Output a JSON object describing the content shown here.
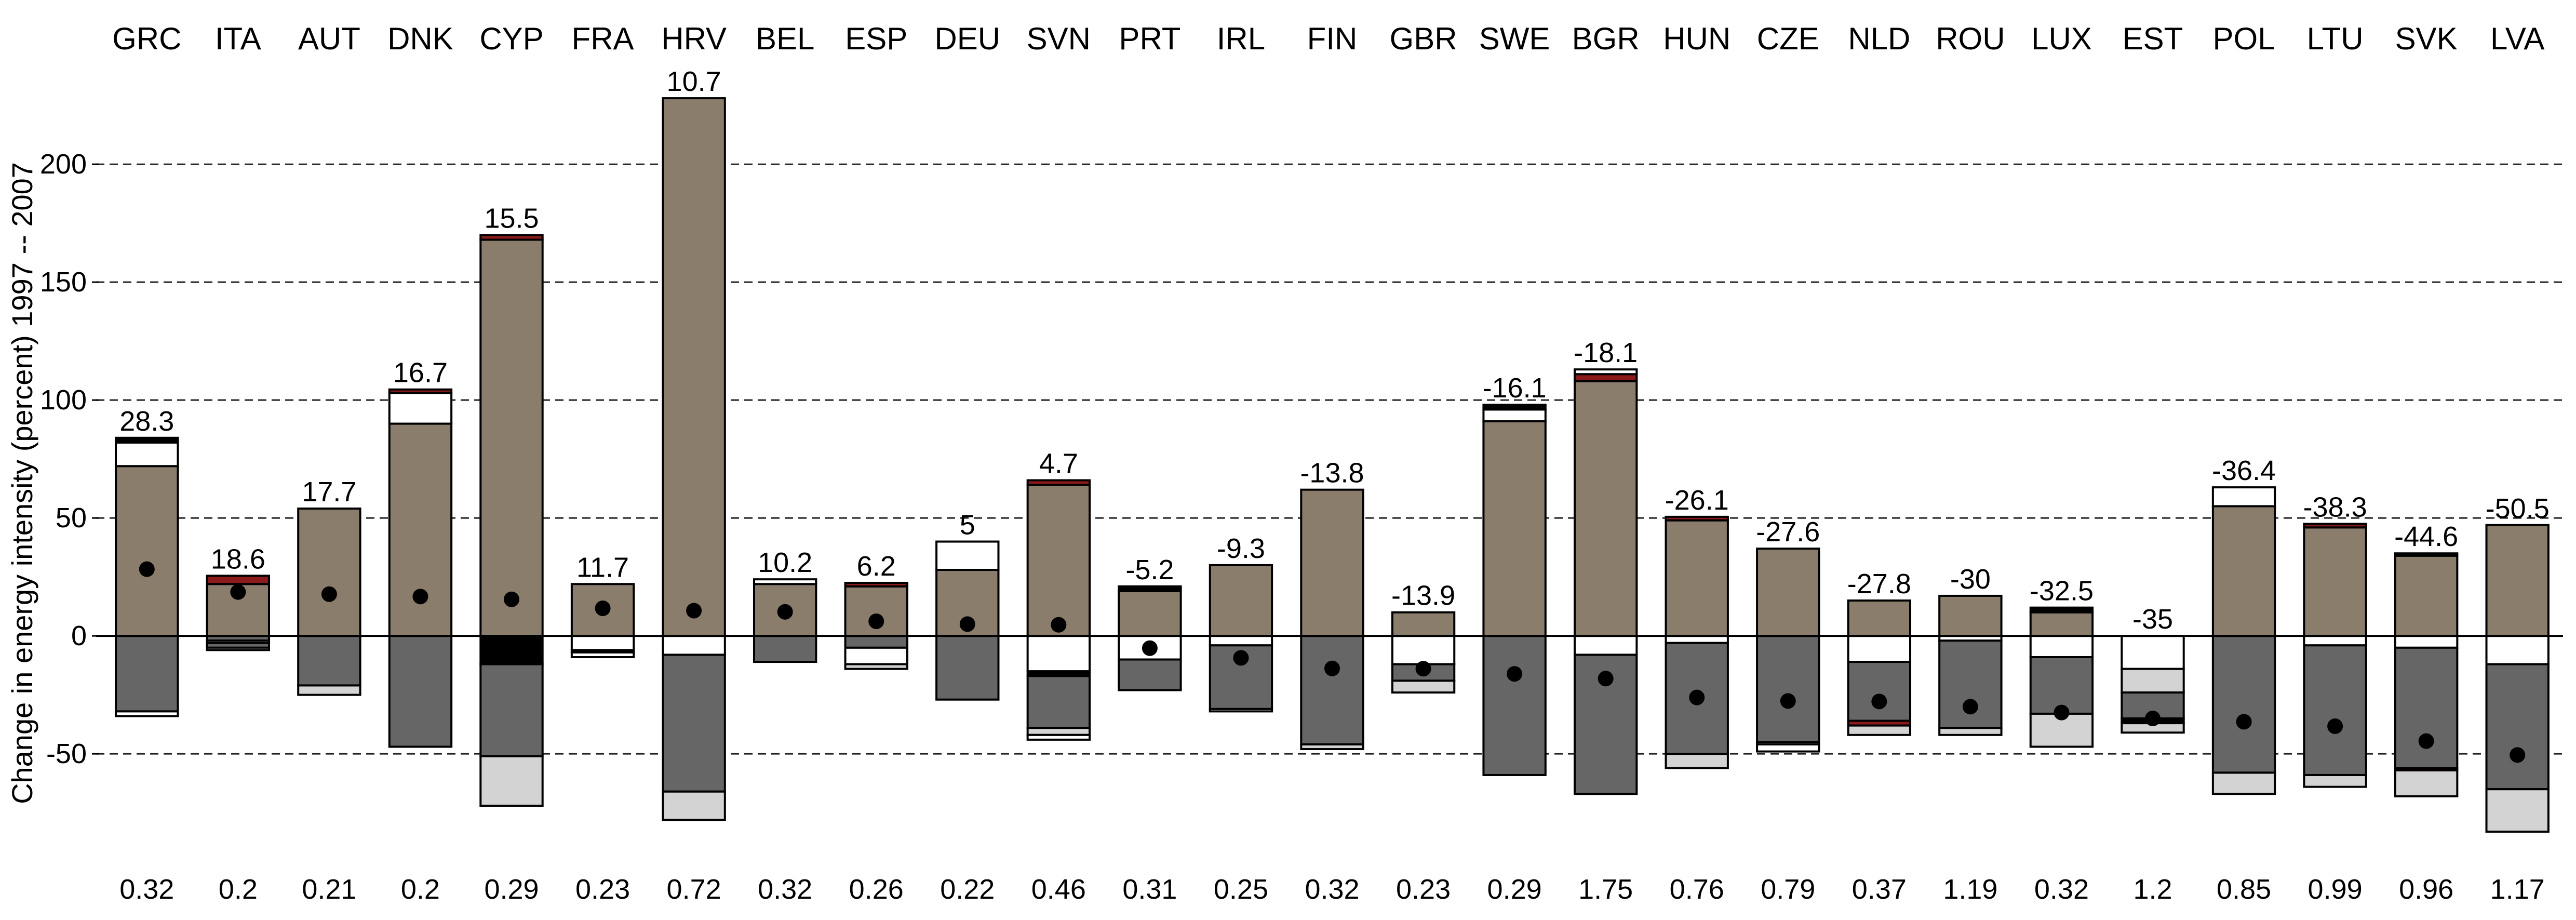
{
  "colors": {
    "positive_main": "#8b7d6b",
    "negative_main": "#666666",
    "light": "#d3d3d3",
    "white": "#ffffff",
    "black": "#000000",
    "red": "#8b1a1a"
  },
  "chart_data": {
    "type": "bar",
    "stacked": true,
    "ylabel": "Change in energy intensity (percent) 1997 -- 2007",
    "ylim": [
      -85,
      230
    ],
    "yticks": [
      -50,
      0,
      50,
      100,
      150,
      200
    ],
    "grid": true,
    "grid_style": "dash-dot",
    "categories": [
      "GRC",
      "ITA",
      "AUT",
      "DNK",
      "CYP",
      "FRA",
      "HRV",
      "BEL",
      "ESP",
      "DEU",
      "SVN",
      "PRT",
      "IRL",
      "FIN",
      "GBR",
      "SWE",
      "BGR",
      "HUN",
      "CZE",
      "NLD",
      "ROU",
      "LUX",
      "EST",
      "POL",
      "LTU",
      "SVK",
      "LVA"
    ],
    "totals": [
      28.3,
      18.6,
      17.7,
      16.7,
      15.5,
      11.7,
      10.7,
      10.2,
      6.2,
      5,
      4.7,
      -5.2,
      -9.3,
      -13.8,
      -13.9,
      -16.1,
      -18.1,
      -26.1,
      -27.6,
      -27.8,
      -30,
      -32.5,
      -35,
      -36.4,
      -38.3,
      -44.6,
      -50.5
    ],
    "total_labels": [
      "28.3",
      "18.6",
      "17.7",
      "16.7",
      "15.5",
      "11.7",
      "10.7",
      "10.2",
      "6.2",
      "5",
      "4.7",
      "-5.2",
      "-9.3",
      "-13.8",
      "-13.9",
      "-16.1",
      "-18.1",
      "-26.1",
      "-27.6",
      "-27.8",
      "-30",
      "-32.5",
      "-35",
      "-36.4",
      "-38.3",
      "-44.6",
      "-50.5"
    ],
    "base_values": [
      "0.32",
      "0.2",
      "0.21",
      "0.2",
      "0.29",
      "0.23",
      "0.72",
      "0.32",
      "0.26",
      "0.22",
      "0.46",
      "0.31",
      "0.25",
      "0.32",
      "0.23",
      "0.29",
      "1.75",
      "0.76",
      "0.79",
      "0.37",
      "1.19",
      "0.32",
      "1.2",
      "0.85",
      "0.99",
      "0.96",
      "1.17"
    ],
    "positive_segments": [
      [
        {
          "color": "positive_main",
          "value": 72
        },
        {
          "color": "white",
          "value": 10
        },
        {
          "color": "black",
          "value": 2
        }
      ],
      [
        {
          "color": "positive_main",
          "value": 22
        },
        {
          "color": "red",
          "value": 3.5
        }
      ],
      [
        {
          "color": "positive_main",
          "value": 54
        }
      ],
      [
        {
          "color": "positive_main",
          "value": 90
        },
        {
          "color": "white",
          "value": 13
        },
        {
          "color": "red",
          "value": 1.5
        }
      ],
      [
        {
          "color": "positive_main",
          "value": 168
        },
        {
          "color": "red",
          "value": 2
        }
      ],
      [
        {
          "color": "positive_main",
          "value": 22
        }
      ],
      [
        {
          "color": "positive_main",
          "value": 228
        }
      ],
      [
        {
          "color": "positive_main",
          "value": 22
        },
        {
          "color": "white",
          "value": 2
        }
      ],
      [
        {
          "color": "positive_main",
          "value": 21
        },
        {
          "color": "red",
          "value": 1.5
        }
      ],
      [
        {
          "color": "positive_main",
          "value": 28
        },
        {
          "color": "white",
          "value": 12
        }
      ],
      [
        {
          "color": "positive_main",
          "value": 64
        },
        {
          "color": "red",
          "value": 2
        }
      ],
      [
        {
          "color": "positive_main",
          "value": 19
        },
        {
          "color": "black",
          "value": 2
        }
      ],
      [
        {
          "color": "positive_main",
          "value": 30
        }
      ],
      [
        {
          "color": "positive_main",
          "value": 62
        }
      ],
      [
        {
          "color": "positive_main",
          "value": 10
        }
      ],
      [
        {
          "color": "positive_main",
          "value": 91
        },
        {
          "color": "white",
          "value": 5
        },
        {
          "color": "black",
          "value": 2
        }
      ],
      [
        {
          "color": "positive_main",
          "value": 108
        },
        {
          "color": "red",
          "value": 3
        },
        {
          "color": "white",
          "value": 2
        }
      ],
      [
        {
          "color": "positive_main",
          "value": 49
        },
        {
          "color": "red",
          "value": 1.5
        }
      ],
      [
        {
          "color": "positive_main",
          "value": 37
        }
      ],
      [
        {
          "color": "positive_main",
          "value": 15
        }
      ],
      [
        {
          "color": "positive_main",
          "value": 17
        }
      ],
      [
        {
          "color": "positive_main",
          "value": 10
        },
        {
          "color": "black",
          "value": 2
        }
      ],
      [],
      [
        {
          "color": "positive_main",
          "value": 55
        },
        {
          "color": "white",
          "value": 8
        }
      ],
      [
        {
          "color": "positive_main",
          "value": 46
        },
        {
          "color": "red",
          "value": 1.5
        }
      ],
      [
        {
          "color": "positive_main",
          "value": 34
        },
        {
          "color": "black",
          "value": 1
        }
      ],
      [
        {
          "color": "positive_main",
          "value": 47
        }
      ]
    ],
    "negative_segments": [
      [
        {
          "color": "negative_main",
          "value": 32
        },
        {
          "color": "white",
          "value": 2
        }
      ],
      [
        {
          "color": "negative_main",
          "value": 2
        },
        {
          "color": "light",
          "value": 1
        },
        {
          "color": "negative_main",
          "value": 2
        },
        {
          "color": "white",
          "value": 1
        }
      ],
      [
        {
          "color": "negative_main",
          "value": 21
        },
        {
          "color": "light",
          "value": 4
        }
      ],
      [
        {
          "color": "negative_main",
          "value": 47
        }
      ],
      [
        {
          "color": "black",
          "value": 12
        },
        {
          "color": "negative_main",
          "value": 39
        },
        {
          "color": "light",
          "value": 21
        }
      ],
      [
        {
          "color": "white",
          "value": 6
        },
        {
          "color": "black",
          "value": 1
        },
        {
          "color": "white",
          "value": 2
        }
      ],
      [
        {
          "color": "white",
          "value": 8
        },
        {
          "color": "negative_main",
          "value": 58
        },
        {
          "color": "light",
          "value": 12
        }
      ],
      [
        {
          "color": "negative_main",
          "value": 11
        }
      ],
      [
        {
          "color": "negative_main",
          "value": 5
        },
        {
          "color": "white",
          "value": 7
        },
        {
          "color": "light",
          "value": 2
        }
      ],
      [
        {
          "color": "negative_main",
          "value": 27
        }
      ],
      [
        {
          "color": "white",
          "value": 15
        },
        {
          "color": "black",
          "value": 2
        },
        {
          "color": "negative_main",
          "value": 22
        },
        {
          "color": "light",
          "value": 3
        },
        {
          "color": "white",
          "value": 2
        }
      ],
      [
        {
          "color": "white",
          "value": 10
        },
        {
          "color": "negative_main",
          "value": 13
        }
      ],
      [
        {
          "color": "white",
          "value": 4
        },
        {
          "color": "negative_main",
          "value": 27
        },
        {
          "color": "white",
          "value": 1
        }
      ],
      [
        {
          "color": "negative_main",
          "value": 46
        },
        {
          "color": "light",
          "value": 2
        }
      ],
      [
        {
          "color": "white",
          "value": 12
        },
        {
          "color": "negative_main",
          "value": 7
        },
        {
          "color": "light",
          "value": 5
        }
      ],
      [
        {
          "color": "negative_main",
          "value": 59
        }
      ],
      [
        {
          "color": "white",
          "value": 8
        },
        {
          "color": "negative_main",
          "value": 59
        }
      ],
      [
        {
          "color": "white",
          "value": 3
        },
        {
          "color": "negative_main",
          "value": 47
        },
        {
          "color": "light",
          "value": 6
        }
      ],
      [
        {
          "color": "negative_main",
          "value": 45
        },
        {
          "color": "light",
          "value": 1
        },
        {
          "color": "white",
          "value": 3
        }
      ],
      [
        {
          "color": "white",
          "value": 11
        },
        {
          "color": "negative_main",
          "value": 25
        },
        {
          "color": "red",
          "value": 2
        },
        {
          "color": "light",
          "value": 4
        }
      ],
      [
        {
          "color": "white",
          "value": 2
        },
        {
          "color": "negative_main",
          "value": 37
        },
        {
          "color": "light",
          "value": 3
        }
      ],
      [
        {
          "color": "white",
          "value": 9
        },
        {
          "color": "negative_main",
          "value": 24
        },
        {
          "color": "light",
          "value": 14
        }
      ],
      [
        {
          "color": "white",
          "value": 14
        },
        {
          "color": "light",
          "value": 10
        },
        {
          "color": "negative_main",
          "value": 11
        },
        {
          "color": "black",
          "value": 2
        },
        {
          "color": "light",
          "value": 4
        }
      ],
      [
        {
          "color": "negative_main",
          "value": 58
        },
        {
          "color": "light",
          "value": 9
        }
      ],
      [
        {
          "color": "white",
          "value": 4
        },
        {
          "color": "negative_main",
          "value": 55
        },
        {
          "color": "light",
          "value": 5
        }
      ],
      [
        {
          "color": "white",
          "value": 5
        },
        {
          "color": "negative_main",
          "value": 51
        },
        {
          "color": "red",
          "value": 1
        },
        {
          "color": "light",
          "value": 11
        }
      ],
      [
        {
          "color": "white",
          "value": 12
        },
        {
          "color": "negative_main",
          "value": 53
        },
        {
          "color": "light",
          "value": 18
        }
      ]
    ]
  }
}
